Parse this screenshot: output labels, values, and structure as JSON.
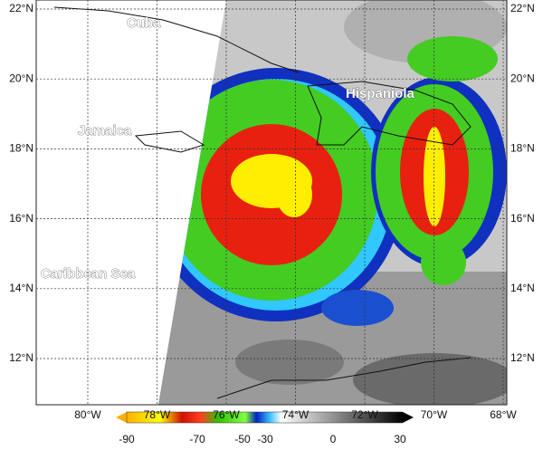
{
  "map": {
    "lat_labels": [
      "22°N",
      "20°N",
      "18°N",
      "16°N",
      "14°N",
      "12°N"
    ],
    "lon_labels": [
      "80°W",
      "78°W",
      "76°W",
      "74°W",
      "72°W",
      "70°W",
      "68°W"
    ],
    "places": [
      "Cuba",
      "Jamaica",
      "Hispaniola",
      "Caribbean Sea"
    ],
    "colorbar": {
      "labels": [
        "-90",
        "-70",
        "-50",
        "-30",
        "0",
        "30"
      ]
    }
  }
}
